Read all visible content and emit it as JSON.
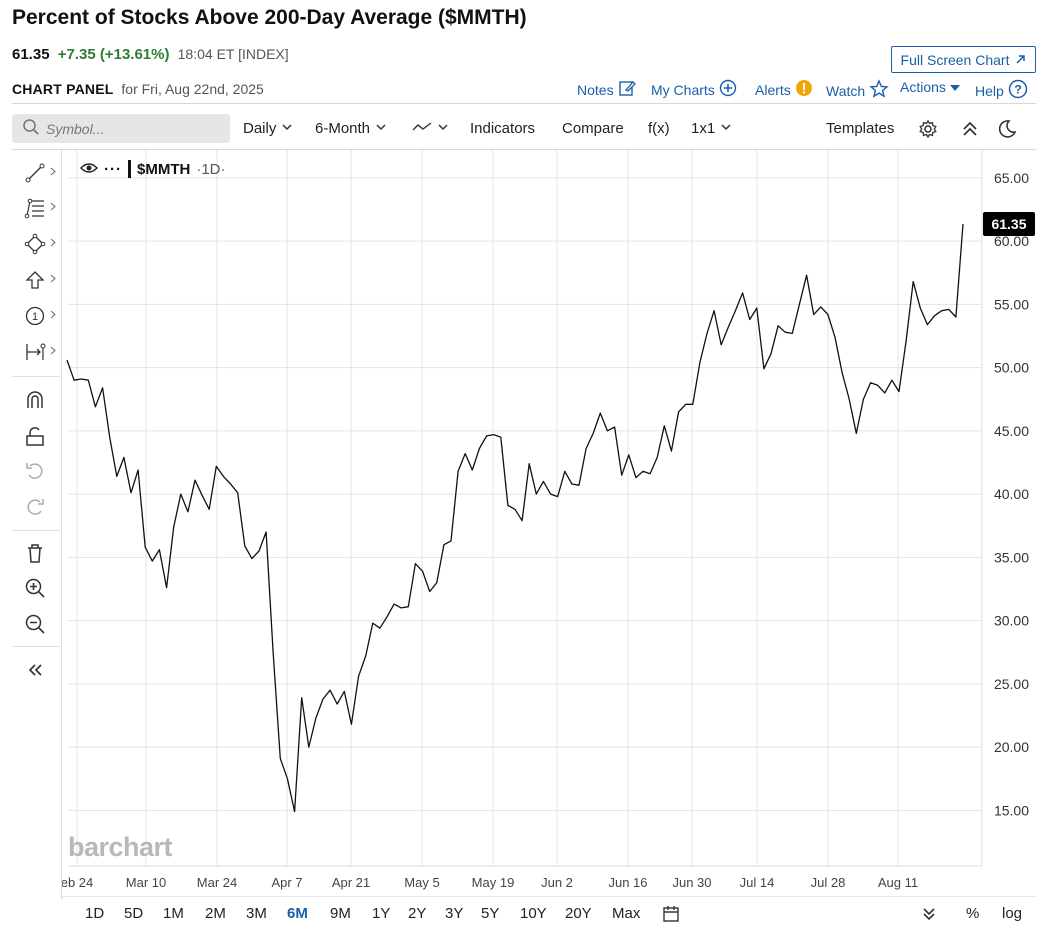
{
  "header": {
    "title": "Percent of Stocks Above 200-Day Average ($MMTH)",
    "last": "61.35",
    "change": "+7.35 (+13.61%)",
    "meta": "18:04 ET [INDEX]",
    "full_screen_label": "Full Screen Chart",
    "panel_label": "CHART PANEL",
    "panel_for": "for Fri, Aug 22nd, 2025",
    "links": {
      "notes": "Notes",
      "my_charts": "My Charts",
      "alerts": "Alerts",
      "watch": "Watch",
      "actions": "Actions",
      "help": "Help"
    }
  },
  "toolbar": {
    "symbol_placeholder": "Symbol...",
    "interval": "Daily",
    "period": "6-Month",
    "indicators": "Indicators",
    "compare": "Compare",
    "fx": "f(x)",
    "layout": "1x1",
    "templates": "Templates"
  },
  "legend": {
    "symbol": "$MMTH",
    "interval": "·1D·"
  },
  "watermark": "barchart",
  "ranges": [
    "1D",
    "5D",
    "1M",
    "2M",
    "3M",
    "6M",
    "9M",
    "1Y",
    "2Y",
    "3Y",
    "5Y",
    "10Y",
    "20Y",
    "Max"
  ],
  "active_range": "6M",
  "bottom_right": {
    "percent": "%",
    "log": "log"
  },
  "colors": {
    "accent": "#1a5fa8",
    "positive": "#2e7d32",
    "line": "#111111",
    "grid": "#e3e3e3"
  },
  "chart_data": {
    "type": "line",
    "series": [
      {
        "values": [
          50.6,
          49.0,
          49.1,
          49.0,
          46.9,
          48.4,
          44.5,
          41.4,
          42.9,
          40.1,
          41.9,
          35.8,
          34.7,
          35.6,
          32.6,
          37.4,
          40.0,
          38.6,
          41.1,
          39.9,
          38.8,
          42.2,
          41.4,
          40.8,
          40.1,
          35.9,
          34.9,
          35.5,
          37.0,
          27.4,
          19.1,
          17.5,
          14.9,
          23.9,
          20.0,
          22.3,
          23.8,
          24.5,
          23.4,
          24.4,
          21.8,
          25.6,
          27.2,
          29.8,
          29.4,
          30.3,
          31.3,
          31.0,
          31.1,
          34.5,
          33.9,
          32.3,
          33.0,
          36.0,
          36.3,
          41.8,
          43.2,
          41.9,
          43.6,
          44.6,
          44.7,
          44.5,
          39.1,
          38.8,
          37.9,
          42.4,
          40.0,
          41.0,
          40.0,
          39.8,
          41.8,
          40.8,
          40.7,
          43.6,
          44.8,
          46.4,
          45.0,
          45.3,
          41.5,
          43.1,
          41.3,
          41.8,
          41.6,
          42.9,
          45.4,
          43.4,
          46.5,
          47.1,
          47.1,
          50.4,
          52.7,
          54.5,
          51.8,
          53.2,
          54.5,
          55.9,
          53.8,
          54.7,
          49.9,
          51.1,
          53.3,
          52.8,
          52.7,
          55.0,
          57.3,
          54.2,
          54.8,
          54.2,
          52.4,
          49.6,
          47.5,
          44.8,
          47.5,
          48.8,
          48.6,
          48.0,
          49.0,
          48.1,
          52.1,
          56.8,
          54.7,
          53.4,
          54.1,
          54.5,
          54.6,
          54.0,
          61.35
        ]
      }
    ],
    "x_tick_labels": [
      "eb 24",
      "Mar 10",
      "Mar 24",
      "Apr 7",
      "Apr 21",
      "May 5",
      "May 19",
      "Jun 2",
      "Jun 16",
      "Jun 30",
      "Jul 14",
      "Jul 28",
      "Aug 11"
    ],
    "y_tick_labels": [
      "65.00",
      "60.00",
      "55.00",
      "50.00",
      "45.00",
      "40.00",
      "35.00",
      "30.00",
      "25.00",
      "20.00",
      "15.00"
    ],
    "ylim": [
      10.6,
      67.2
    ],
    "last_value_label": "61.35",
    "grid": true
  }
}
